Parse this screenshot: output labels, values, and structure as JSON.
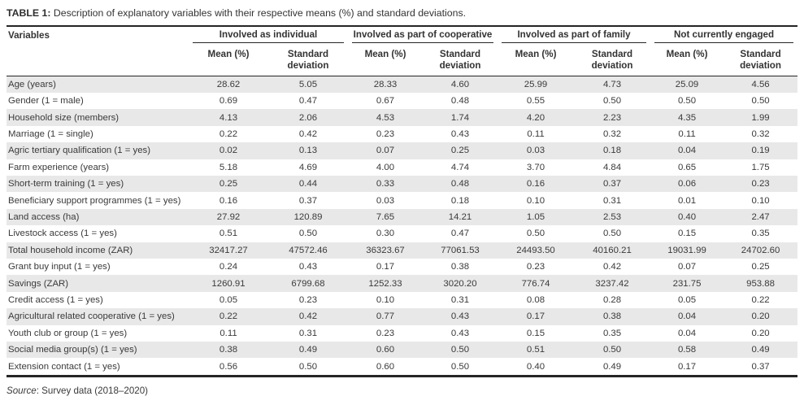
{
  "caption": {
    "label": "TABLE 1:",
    "text": " Description of explanatory variables with their respective means (%) and standard deviations."
  },
  "table": {
    "variables_header": "Variables",
    "groups": [
      {
        "label": "Involved as individual"
      },
      {
        "label": "Involved as part of cooperative"
      },
      {
        "label": "Involved as part of family"
      },
      {
        "label": "Not currently engaged"
      }
    ],
    "subheaders": {
      "mean": "Mean (%)",
      "sd": "Standard deviation"
    },
    "rows": [
      {
        "variable": "Age (years)",
        "values": [
          "28.62",
          "5.05",
          "28.33",
          "4.60",
          "25.99",
          "4.73",
          "25.09",
          "4.56"
        ]
      },
      {
        "variable": "Gender (1 = male)",
        "values": [
          "0.69",
          "0.47",
          "0.67",
          "0.48",
          "0.55",
          "0.50",
          "0.50",
          "0.50"
        ]
      },
      {
        "variable": "Household size (members)",
        "values": [
          "4.13",
          "2.06",
          "4.53",
          "1.74",
          "4.20",
          "2.23",
          "4.35",
          "1.99"
        ]
      },
      {
        "variable": "Marriage (1 = single)",
        "values": [
          "0.22",
          "0.42",
          "0.23",
          "0.43",
          "0.11",
          "0.32",
          "0.11",
          "0.32"
        ]
      },
      {
        "variable": "Agric tertiary qualification (1 = yes)",
        "values": [
          "0.02",
          "0.13",
          "0.07",
          "0.25",
          "0.03",
          "0.18",
          "0.04",
          "0.19"
        ]
      },
      {
        "variable": "Farm experience (years)",
        "values": [
          "5.18",
          "4.69",
          "4.00",
          "4.74",
          "3.70",
          "4.84",
          "0.65",
          "1.75"
        ]
      },
      {
        "variable": "Short-term training (1 = yes)",
        "values": [
          "0.25",
          "0.44",
          "0.33",
          "0.48",
          "0.16",
          "0.37",
          "0.06",
          "0.23"
        ]
      },
      {
        "variable": "Beneficiary support programmes (1 = yes)",
        "values": [
          "0.16",
          "0.37",
          "0.03",
          "0.18",
          "0.10",
          "0.31",
          "0.01",
          "0.10"
        ]
      },
      {
        "variable": "Land access (ha)",
        "values": [
          "27.92",
          "120.89",
          "7.65",
          "14.21",
          "1.05",
          "2.53",
          "0.40",
          "2.47"
        ]
      },
      {
        "variable": "Livestock access (1 = yes)",
        "values": [
          "0.51",
          "0.50",
          "0.30",
          "0.47",
          "0.50",
          "0.50",
          "0.15",
          "0.35"
        ]
      },
      {
        "variable": "Total household income (ZAR)",
        "values": [
          "32417.27",
          "47572.46",
          "36323.67",
          "77061.53",
          "24493.50",
          "40160.21",
          "19031.99",
          "24702.60"
        ]
      },
      {
        "variable": "Grant buy input (1 = yes)",
        "values": [
          "0.24",
          "0.43",
          "0.17",
          "0.38",
          "0.23",
          "0.42",
          "0.07",
          "0.25"
        ]
      },
      {
        "variable": "Savings (ZAR)",
        "values": [
          "1260.91",
          "6799.68",
          "1252.33",
          "3020.20",
          "776.74",
          "3237.42",
          "231.75",
          "953.88"
        ]
      },
      {
        "variable": "Credit access (1 = yes)",
        "values": [
          "0.05",
          "0.23",
          "0.10",
          "0.31",
          "0.08",
          "0.28",
          "0.05",
          "0.22"
        ]
      },
      {
        "variable": "Agricultural related cooperative (1 = yes)",
        "values": [
          "0.22",
          "0.42",
          "0.77",
          "0.43",
          "0.17",
          "0.38",
          "0.04",
          "0.20"
        ]
      },
      {
        "variable": "Youth club or group (1 = yes)",
        "values": [
          "0.11",
          "0.31",
          "0.23",
          "0.43",
          "0.15",
          "0.35",
          "0.04",
          "0.20"
        ]
      },
      {
        "variable": "Social media group(s) (1 = yes)",
        "values": [
          "0.38",
          "0.49",
          "0.60",
          "0.50",
          "0.51",
          "0.50",
          "0.58",
          "0.49"
        ]
      },
      {
        "variable": "Extension contact (1 = yes)",
        "values": [
          "0.56",
          "0.50",
          "0.60",
          "0.50",
          "0.40",
          "0.49",
          "0.17",
          "0.37"
        ]
      }
    ]
  },
  "footer": {
    "source_label": "Source",
    "source_text": ": Survey data (2018–2020)"
  },
  "colors": {
    "row_stripe": "#e8e8e8",
    "rule": "#252525",
    "text": "#3a3a3a"
  }
}
